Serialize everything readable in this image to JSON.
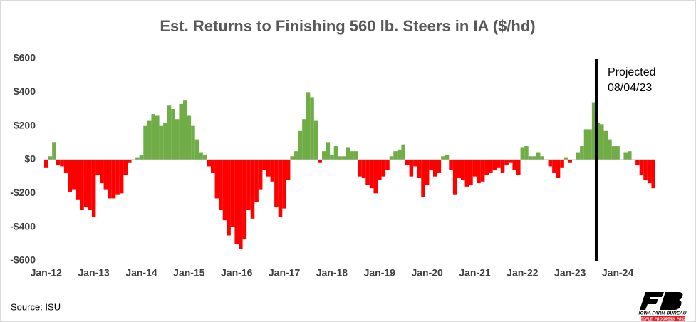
{
  "chart_data": {
    "type": "bar",
    "title": "Est. Returns to Finishing 560 lb. Steers in IA ($/hd)",
    "categories": [
      "Jan-12",
      null,
      null,
      null,
      null,
      null,
      null,
      null,
      null,
      null,
      null,
      null,
      "Jan-13",
      null,
      null,
      null,
      null,
      null,
      null,
      null,
      null,
      null,
      null,
      null,
      "Jan-14",
      null,
      null,
      null,
      null,
      null,
      null,
      null,
      null,
      null,
      null,
      null,
      "Jan-15",
      null,
      null,
      null,
      null,
      null,
      null,
      null,
      null,
      null,
      null,
      null,
      "Jan-16",
      null,
      null,
      null,
      null,
      null,
      null,
      null,
      null,
      null,
      null,
      null,
      "Jan-17",
      null,
      null,
      null,
      null,
      null,
      null,
      null,
      null,
      null,
      null,
      null,
      "Jan-18",
      null,
      null,
      null,
      null,
      null,
      null,
      null,
      null,
      null,
      null,
      null,
      "Jan-19",
      null,
      null,
      null,
      null,
      null,
      null,
      null,
      null,
      null,
      null,
      null,
      "Jan-20",
      null,
      null,
      null,
      null,
      null,
      null,
      null,
      null,
      null,
      null,
      null,
      "Jan-21",
      null,
      null,
      null,
      null,
      null,
      null,
      null,
      null,
      null,
      null,
      null,
      "Jan-22",
      null,
      null,
      null,
      null,
      null,
      null,
      null,
      null,
      null,
      null,
      null,
      "Jan-23",
      null,
      null,
      null,
      null,
      null,
      null,
      null,
      null,
      null,
      null,
      null,
      "Jan-24",
      null,
      null,
      null,
      null,
      null,
      null,
      null,
      null,
      null
    ],
    "values": [
      -50,
      20,
      100,
      -30,
      -40,
      -80,
      -190,
      -180,
      -240,
      -300,
      -280,
      -300,
      -340,
      -90,
      -140,
      -180,
      -230,
      -230,
      -210,
      -200,
      -90,
      -20,
      0,
      10,
      30,
      200,
      230,
      270,
      260,
      200,
      220,
      320,
      300,
      240,
      330,
      350,
      260,
      200,
      120,
      40,
      30,
      -40,
      -80,
      -230,
      -300,
      -360,
      -450,
      -400,
      -500,
      -530,
      -470,
      -300,
      -350,
      -250,
      -180,
      -60,
      -100,
      -130,
      -280,
      -340,
      -290,
      -120,
      20,
      50,
      170,
      240,
      400,
      370,
      230,
      -20,
      50,
      100,
      30,
      80,
      20,
      20,
      70,
      50,
      50,
      -100,
      -110,
      -150,
      -170,
      -200,
      -120,
      -100,
      -60,
      20,
      50,
      60,
      90,
      -30,
      -100,
      -40,
      -110,
      -220,
      -150,
      -60,
      -100,
      -80,
      20,
      30,
      -60,
      -210,
      -110,
      -120,
      -160,
      -150,
      -100,
      -140,
      -130,
      -90,
      -80,
      -60,
      -50,
      -80,
      -30,
      -20,
      -60,
      -90,
      70,
      80,
      20,
      20,
      40,
      20,
      0,
      -40,
      -80,
      -110,
      -50,
      10,
      -20,
      0,
      40,
      80,
      180,
      180,
      340,
      220,
      210,
      170,
      120,
      80,
      80,
      0,
      40,
      50,
      0,
      -30,
      -90,
      -120,
      -140,
      -170
    ],
    "colors": {
      "positive": "#70ad47",
      "negative": "#ff0000"
    },
    "ylim": [
      -600,
      600
    ],
    "yticks": [
      {
        "value": -600,
        "label": "-$600"
      },
      {
        "value": -400,
        "label": "-$400"
      },
      {
        "value": -200,
        "label": "-$200"
      },
      {
        "value": 0,
        "label": "$0"
      },
      {
        "value": 200,
        "label": "$200"
      },
      {
        "value": 400,
        "label": "$400"
      },
      {
        "value": 600,
        "label": "$600"
      }
    ],
    "grid": false,
    "annotation": [
      "Projected",
      "08/04/23"
    ],
    "source": "Source: ISU",
    "logo": {
      "name": "IOWA FARM BUREAU",
      "tagline": "PEOPLE. PROGRESS. PRIDE."
    }
  }
}
